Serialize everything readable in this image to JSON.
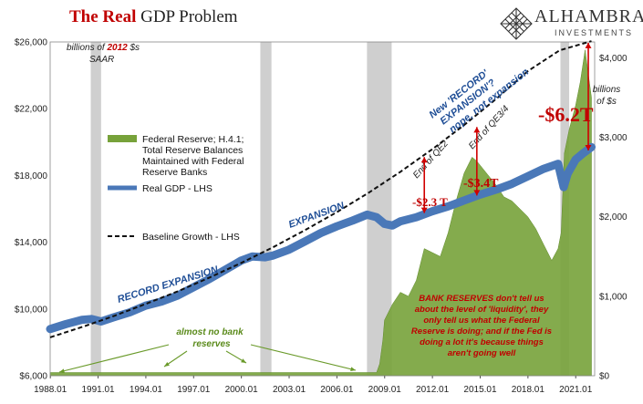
{
  "header": {
    "title_red": "The Real",
    "title_rest": "GDP Problem",
    "logo_name": "ALHAMBRA",
    "logo_sub": "INVESTMENTS",
    "logo_icon": "diamond-lattice-icon"
  },
  "chart_data": {
    "type": "line",
    "x_ticks": [
      "1988.01",
      "1991.01",
      "1994.01",
      "1997.01",
      "2000.01",
      "2003.01",
      "2006.01",
      "2009.01",
      "2012.01",
      "2015.01",
      "2018.01",
      "2021.01"
    ],
    "x_range": [
      1988.0,
      2022.2
    ],
    "y_left": {
      "ticks": [
        "$6,000",
        "$10,000",
        "$14,000",
        "$18,000",
        "$22,000",
        "$26,000"
      ],
      "range": [
        6000,
        26000
      ]
    },
    "y_right": {
      "ticks": [
        "$0",
        "$1,000",
        "$2,000",
        "$3,000",
        "$4,000"
      ],
      "range": [
        0,
        4200
      ],
      "label_line1": "billions",
      "label_line2": "of $s"
    },
    "left_unit_note": {
      "line1_prefix": "billions of ",
      "line1_year": "2012",
      "line1_suffix": " $s",
      "line2": "SAAR"
    },
    "recessions": [
      {
        "start": 1990.55,
        "end": 1991.2
      },
      {
        "start": 2001.2,
        "end": 2001.9
      },
      {
        "start": 2007.9,
        "end": 2009.45
      },
      {
        "start": 2020.05,
        "end": 2020.6
      }
    ],
    "series": [
      {
        "name": "Real GDP - LHS",
        "color": "#4a78b8",
        "axis": "left",
        "points": [
          [
            1988.0,
            8800
          ],
          [
            1989.0,
            9100
          ],
          [
            1990.0,
            9350
          ],
          [
            1990.6,
            9400
          ],
          [
            1991.2,
            9250
          ],
          [
            1992.0,
            9500
          ],
          [
            1993.0,
            9800
          ],
          [
            1994.0,
            10200
          ],
          [
            1995.0,
            10450
          ],
          [
            1996.0,
            10800
          ],
          [
            1997.0,
            11300
          ],
          [
            1998.0,
            11800
          ],
          [
            1999.0,
            12350
          ],
          [
            2000.0,
            12900
          ],
          [
            2000.7,
            13150
          ],
          [
            2001.5,
            13100
          ],
          [
            2002.0,
            13200
          ],
          [
            2003.0,
            13550
          ],
          [
            2004.0,
            14050
          ],
          [
            2005.0,
            14550
          ],
          [
            2006.0,
            14950
          ],
          [
            2007.0,
            15300
          ],
          [
            2007.9,
            15650
          ],
          [
            2008.5,
            15500
          ],
          [
            2009.0,
            15100
          ],
          [
            2009.5,
            15000
          ],
          [
            2010.0,
            15250
          ],
          [
            2011.0,
            15500
          ],
          [
            2012.0,
            15850
          ],
          [
            2013.0,
            16150
          ],
          [
            2014.0,
            16500
          ],
          [
            2015.0,
            16850
          ],
          [
            2016.0,
            17150
          ],
          [
            2017.0,
            17500
          ],
          [
            2018.0,
            17950
          ],
          [
            2019.0,
            18400
          ],
          [
            2019.9,
            18700
          ],
          [
            2020.25,
            17300
          ],
          [
            2020.5,
            18100
          ],
          [
            2021.0,
            18950
          ],
          [
            2021.5,
            19350
          ],
          [
            2022.0,
            19700
          ]
        ]
      },
      {
        "name": "Baseline Growth - LHS",
        "color": "#111111",
        "axis": "left",
        "dashed": true,
        "points": [
          [
            1988.0,
            8300
          ],
          [
            1990.0,
            8920
          ],
          [
            1992.0,
            9580
          ],
          [
            1994.0,
            10300
          ],
          [
            1996.0,
            11050
          ],
          [
            1998.0,
            11880
          ],
          [
            2000.0,
            12760
          ],
          [
            2002.0,
            13700
          ],
          [
            2004.0,
            14720
          ],
          [
            2006.0,
            15800
          ],
          [
            2008.0,
            16960
          ],
          [
            2010.0,
            18220
          ],
          [
            2012.0,
            19570
          ],
          [
            2014.0,
            21020
          ],
          [
            2016.0,
            22580
          ],
          [
            2018.0,
            24250
          ],
          [
            2020.0,
            25500
          ],
          [
            2022.0,
            26050
          ]
        ]
      },
      {
        "name": "Federal Reserve; H.4.1; Total Reserve Balances Maintained with Federal Reserve Banks",
        "color": "#77a23a",
        "axis": "right",
        "area": true,
        "points": [
          [
            1988.0,
            40
          ],
          [
            2008.5,
            40
          ],
          [
            2008.7,
            150
          ],
          [
            2008.9,
            450
          ],
          [
            2009.0,
            700
          ],
          [
            2009.5,
            900
          ],
          [
            2010.0,
            1050
          ],
          [
            2010.5,
            1000
          ],
          [
            2011.0,
            1200
          ],
          [
            2011.5,
            1600
          ],
          [
            2012.0,
            1550
          ],
          [
            2012.5,
            1500
          ],
          [
            2013.0,
            1800
          ],
          [
            2013.5,
            2200
          ],
          [
            2014.0,
            2550
          ],
          [
            2014.5,
            2750
          ],
          [
            2014.8,
            2700
          ],
          [
            2015.2,
            2600
          ],
          [
            2015.6,
            2500
          ],
          [
            2016.0,
            2400
          ],
          [
            2016.5,
            2250
          ],
          [
            2017.0,
            2200
          ],
          [
            2017.5,
            2100
          ],
          [
            2018.0,
            2000
          ],
          [
            2018.5,
            1850
          ],
          [
            2019.0,
            1650
          ],
          [
            2019.5,
            1450
          ],
          [
            2019.9,
            1600
          ],
          [
            2020.1,
            1800
          ],
          [
            2020.3,
            2800
          ],
          [
            2020.6,
            3100
          ],
          [
            2021.0,
            3400
          ],
          [
            2021.3,
            3700
          ],
          [
            2021.6,
            4100
          ],
          [
            2021.8,
            3800
          ],
          [
            2022.0,
            3500
          ]
        ]
      }
    ],
    "legend": [
      {
        "label_lines": [
          "Federal Reserve; H.4.1;",
          "Total Reserve Balances",
          "Maintained with Federal",
          "Reserve Banks"
        ]
      },
      {
        "label_lines": [
          "Real GDP - LHS"
        ]
      },
      {
        "label_lines": [
          "Baseline Growth - LHS"
        ]
      }
    ],
    "annotations": {
      "record_expansion": "RECORD EXPANSION",
      "expansion": "EXPANSION",
      "new_record_line1": "New 'RECORD'",
      "new_record_line2": "EXPANSION'?",
      "new_record_line3": "nope, not expansion",
      "end_qe2": "End of QE2",
      "end_qe34": "End of QE3/4",
      "gap1": "-$2.3 T",
      "gap2": "-$3.4T",
      "gap3": "-$6.2T",
      "no_reserves_line1": "almost no bank",
      "no_reserves_line2": "reserves",
      "reserves_box": [
        "BANK RESERVES don't tell us",
        "about the level of 'liquidity', they",
        "only tell us what the Federal",
        "Reserve is doing; and if the Fed is",
        "doing a lot it's because things",
        "aren't going well"
      ]
    }
  }
}
